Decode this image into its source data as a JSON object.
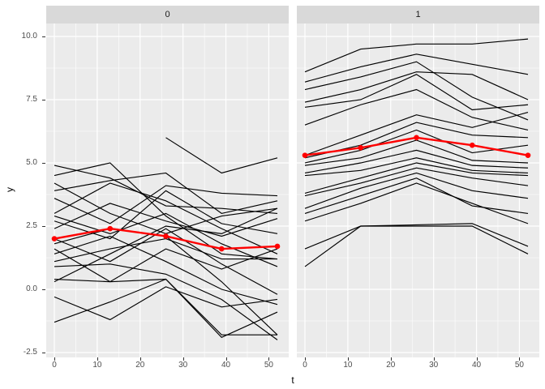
{
  "chart_data": {
    "type": "line",
    "title": "",
    "xlabel": "t",
    "ylabel": "y",
    "grid": "on",
    "legend": "none",
    "x": [
      0,
      13,
      26,
      39,
      52
    ],
    "xlim": [
      -1.9,
      54.7
    ],
    "ylim": [
      -2.69,
      10.54
    ],
    "x_axis": {
      "tick_labels": [
        "0",
        "10",
        "20",
        "30",
        "40",
        "50"
      ],
      "tick_values": [
        0,
        10,
        20,
        30,
        40,
        50
      ],
      "minor_values": [
        5,
        15,
        25,
        35,
        45,
        55
      ]
    },
    "y_axis": {
      "tick_labels": [
        "10.0",
        "7.5",
        "5.0",
        "2.5",
        "0.0",
        "-2.5"
      ],
      "tick_values": [
        10,
        7.5,
        5,
        2.5,
        0,
        -2.5
      ],
      "minor_values": [
        8.75,
        6.25,
        3.75,
        1.25,
        -1.25
      ]
    },
    "facets": [
      {
        "label": "0",
        "series": [
          [
            4.9,
            4.4,
            3.3,
            3.2,
            3.0
          ],
          [
            4.5,
            5.0,
            2.9,
            1.4,
            1.2
          ],
          [
            3.9,
            4.3,
            4.6,
            3.0,
            3.5
          ],
          [
            3.6,
            2.6,
            4.1,
            3.8,
            3.7
          ],
          [
            3.0,
            4.2,
            3.5,
            2.4,
            1.4
          ],
          [
            2.9,
            2.2,
            3.0,
            1.8,
            0.9
          ],
          [
            2.4,
            3.4,
            2.7,
            2.1,
            2.8
          ],
          [
            2.0,
            1.1,
            2.4,
            1.0,
            -0.2
          ],
          [
            1.8,
            2.4,
            2.1,
            0.3,
            -1.8
          ],
          [
            1.6,
            0.3,
            1.6,
            0.8,
            1.6
          ],
          [
            1.4,
            2.1,
            1.1,
            0.0,
            -0.6
          ],
          [
            1.1,
            1.6,
            2.0,
            1.2,
            1.2
          ],
          [
            0.9,
            1.0,
            0.6,
            -0.4,
            -2.0
          ],
          [
            0.4,
            0.3,
            0.4,
            -1.8,
            -1.8
          ],
          [
            0.3,
            1.4,
            2.5,
            2.2,
            3.2
          ],
          [
            -0.3,
            -1.2,
            0.1,
            -0.7,
            -0.4
          ],
          [
            -1.3,
            -0.5,
            0.4,
            -1.9,
            -0.9
          ],
          [
            2.7,
            2.0,
            3.9,
            2.6,
            2.2
          ],
          [
            4.2,
            3.0,
            2.2,
            2.9,
            3.2
          ],
          [
            null,
            null,
            6.0,
            4.6,
            5.2
          ]
        ],
        "mean": [
          2.0,
          2.4,
          2.1,
          1.6,
          1.7
        ]
      },
      {
        "label": "1",
        "series": [
          [
            8.6,
            9.5,
            9.7,
            9.7,
            9.9
          ],
          [
            8.2,
            8.8,
            9.3,
            8.9,
            8.5
          ],
          [
            7.9,
            8.4,
            9.0,
            7.6,
            6.7
          ],
          [
            7.4,
            7.9,
            8.6,
            8.5,
            7.5
          ],
          [
            7.2,
            7.5,
            8.5,
            7.1,
            7.3
          ],
          [
            6.5,
            7.3,
            7.9,
            6.8,
            6.3
          ],
          [
            5.3,
            6.1,
            6.9,
            6.4,
            7.0
          ],
          [
            5.2,
            5.7,
            6.6,
            6.1,
            6.0
          ],
          [
            5.0,
            5.5,
            6.3,
            5.4,
            5.7
          ],
          [
            4.9,
            5.2,
            5.9,
            5.1,
            5.0
          ],
          [
            4.6,
            5.0,
            5.5,
            4.9,
            4.8
          ],
          [
            4.5,
            4.7,
            5.2,
            4.7,
            4.6
          ],
          [
            3.8,
            4.4,
            5.0,
            4.6,
            4.5
          ],
          [
            3.7,
            4.2,
            4.8,
            4.4,
            4.1
          ],
          [
            3.2,
            4.0,
            4.6,
            3.9,
            3.6
          ],
          [
            3.0,
            3.7,
            4.4,
            3.3,
            3.0
          ],
          [
            2.7,
            3.4,
            4.2,
            3.4,
            2.6
          ],
          [
            1.6,
            2.5,
            2.55,
            2.6,
            1.7
          ],
          [
            0.9,
            2.5,
            2.5,
            2.5,
            1.4
          ]
        ],
        "mean": [
          5.3,
          5.6,
          6.0,
          5.7,
          5.3
        ]
      }
    ],
    "colors": {
      "panel_bg": "#EBEBEB",
      "strip_bg": "#D9D9D9",
      "grid": "#FFFFFF",
      "series_line": "#000000",
      "mean_line": "#FF0000",
      "axis_text": "#4D4D4D",
      "strip_text": "#1A1A1A",
      "tick_mark": "#333333"
    }
  }
}
